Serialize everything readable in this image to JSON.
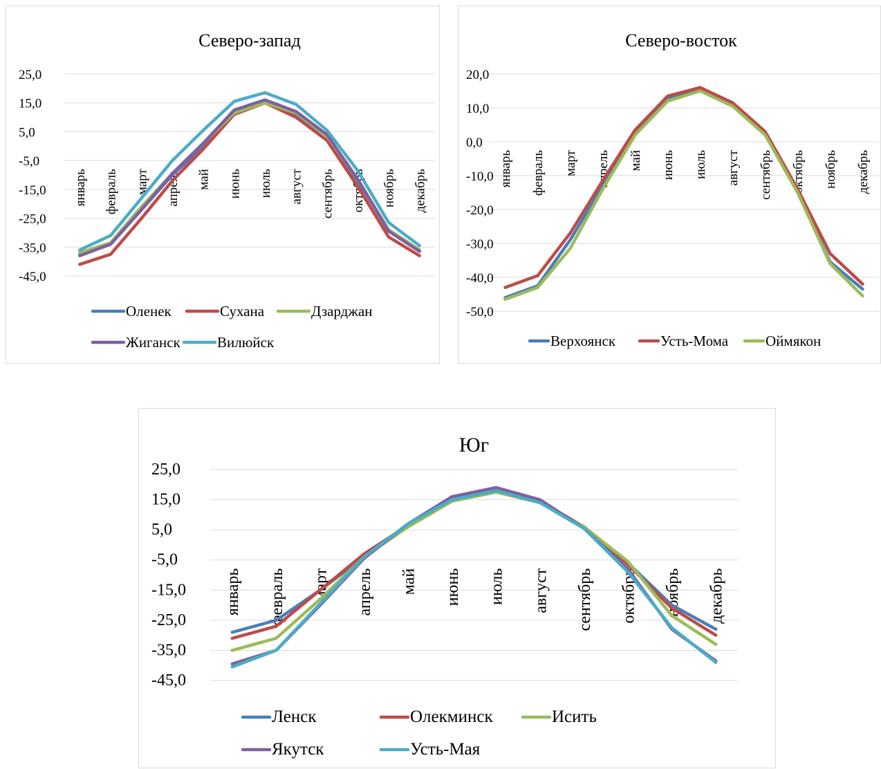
{
  "charts": [
    {
      "id": "panel-nw",
      "title": "Северо-запад",
      "type": "line",
      "y_ticks": [
        "25,0",
        "15,0",
        "5,0",
        "-5,0",
        "-15,0",
        "-25,0",
        "-35,0",
        "-45,0"
      ],
      "ylim": [
        -45,
        25
      ],
      "categories": [
        "январь",
        "февраль",
        "март",
        "апрель",
        "май",
        "июнь",
        "июль",
        "август",
        "сентябрь",
        "октябрь",
        "ноябрь",
        "декабрь"
      ],
      "series": [
        {
          "name": "Оленек",
          "color": "#4a7ebb",
          "values": [
            -37.5,
            -34,
            -22,
            -10,
            0,
            11,
            15,
            11,
            3.5,
            -12,
            -29,
            -36
          ]
        },
        {
          "name": "Сухана",
          "color": "#be4b48",
          "values": [
            -41,
            -37.5,
            -25,
            -12,
            -1,
            11,
            15,
            10,
            2,
            -14,
            -31.5,
            -38
          ]
        },
        {
          "name": "Дзарджан",
          "color": "#9bbb59",
          "values": [
            -37,
            -33.5,
            -21,
            -9.5,
            1,
            11.5,
            15,
            11.5,
            3.5,
            -11.5,
            -29,
            -36
          ]
        },
        {
          "name": "Жиганск",
          "color": "#7d60a0",
          "values": [
            -38,
            -34,
            -22,
            -9.5,
            1,
            12.5,
            16,
            12,
            4,
            -11.5,
            -29.5,
            -36.5
          ]
        },
        {
          "name": "Вилюйск",
          "color": "#4bacc6",
          "values": [
            -36,
            -31,
            -18,
            -5,
            5.5,
            15.5,
            18.5,
            14.5,
            5.5,
            -8.5,
            -26.5,
            -34.5
          ]
        }
      ]
    },
    {
      "id": "panel-ne",
      "title": "Северо-восток",
      "type": "line",
      "y_ticks": [
        "20,0",
        "10,0",
        "0,0",
        "-10,0",
        "-20,0",
        "-30,0",
        "-40,0",
        "-50,0"
      ],
      "ylim": [
        -50,
        20
      ],
      "categories": [
        "январь",
        "февраль",
        "март",
        "апрель",
        "май",
        "июнь",
        "июль",
        "август",
        "сентябрь",
        "октябрь",
        "ноябрь",
        "декабрь"
      ],
      "series": [
        {
          "name": "Верхоянск",
          "color": "#4a7ebb",
          "values": [
            -46,
            -42.5,
            -29,
            -13,
            3,
            13,
            15.5,
            11,
            2.5,
            -15,
            -35.5,
            -43.5
          ]
        },
        {
          "name": "Усть-Мома",
          "color": "#be4b48",
          "values": [
            -43,
            -39.5,
            -27,
            -11.5,
            3.5,
            13.5,
            16,
            11.5,
            3,
            -14,
            -33,
            -42
          ]
        },
        {
          "name": "Оймякон",
          "color": "#9bbb59",
          "values": [
            -46.5,
            -43,
            -31.5,
            -14,
            2,
            12,
            15,
            10.5,
            2,
            -15,
            -36,
            -45.5
          ]
        }
      ]
    },
    {
      "id": "panel-s",
      "title": "Юг",
      "type": "line",
      "y_ticks": [
        "25,0",
        "15,0",
        "5,0",
        "-5,0",
        "-15,0",
        "-25,0",
        "-35,0",
        "-45,0"
      ],
      "ylim": [
        -45,
        25
      ],
      "categories": [
        "январь",
        "февраль",
        "март",
        "апрель",
        "май",
        "июнь",
        "июль",
        "август",
        "сентябрь",
        "октябрь",
        "ноябрь",
        "декабрь"
      ],
      "series": [
        {
          "name": "Ленск",
          "color": "#4a7ebb",
          "values": [
            -29,
            -25,
            -15,
            -4,
            6.5,
            15.5,
            18,
            14.5,
            6,
            -6,
            -20,
            -28
          ]
        },
        {
          "name": "Олекминск",
          "color": "#be4b48",
          "values": [
            -31,
            -27,
            -15,
            -3,
            6.5,
            15.5,
            18,
            14.5,
            6,
            -6.5,
            -21,
            -30
          ]
        },
        {
          "name": "Исить",
          "color": "#9bbb59",
          "values": [
            -35,
            -31,
            -18,
            -4,
            6,
            14.5,
            17.5,
            14,
            6,
            -5.5,
            -23.5,
            -33
          ]
        },
        {
          "name": "Якутск",
          "color": "#7d60a0",
          "values": [
            -39.5,
            -35,
            -20,
            -4.5,
            7,
            16,
            19,
            15,
            5.5,
            -8,
            -28,
            -38.5
          ]
        },
        {
          "name": "Усть-Мая",
          "color": "#4bacc6",
          "values": [
            -40.5,
            -35,
            -19.5,
            -4,
            7,
            15,
            18,
            14,
            5.5,
            -9,
            -27.5,
            -39
          ]
        }
      ]
    }
  ]
}
